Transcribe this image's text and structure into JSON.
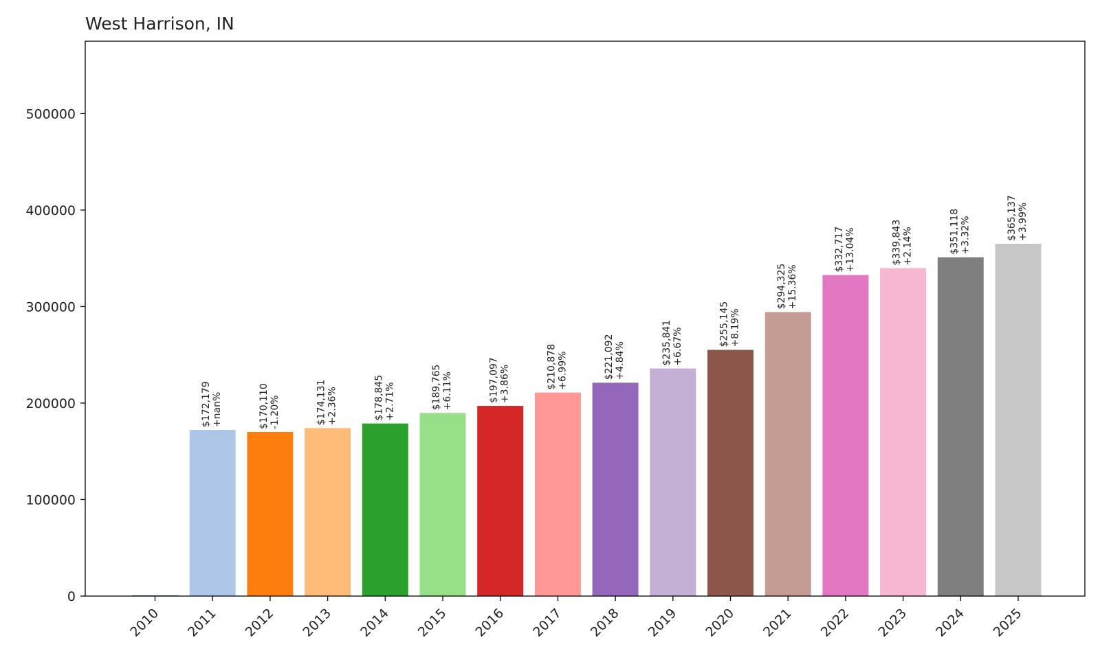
{
  "chart_data": {
    "type": "bar",
    "title": "West Harrison, IN",
    "xlabel": "",
    "ylabel": "",
    "ylim": [
      0,
      575000
    ],
    "y_ticks": [
      0,
      100000,
      200000,
      300000,
      400000,
      500000
    ],
    "y_tick_labels": [
      "0",
      "100000",
      "200000",
      "300000",
      "400000",
      "500000"
    ],
    "categories": [
      "2010",
      "2011",
      "2012",
      "2013",
      "2014",
      "2015",
      "2016",
      "2017",
      "2018",
      "2019",
      "2020",
      "2021",
      "2022",
      "2023",
      "2024",
      "2025"
    ],
    "values": [
      0,
      172179,
      170110,
      174131,
      178845,
      189765,
      197097,
      210878,
      221092,
      235841,
      255145,
      294325,
      332717,
      339843,
      351118,
      365137
    ],
    "value_labels": [
      "",
      "$172,179",
      "$170,110",
      "$174,131",
      "$178,845",
      "$189,765",
      "$197,097",
      "$210,878",
      "$221,092",
      "$235,841",
      "$255,145",
      "$294,325",
      "$332,717",
      "$339,843",
      "$351,118",
      "$365,137"
    ],
    "change_labels": [
      "",
      "+nan%",
      "-1.20%",
      "+2.36%",
      "+2.71%",
      "+6.11%",
      "+3.86%",
      "+6.99%",
      "+4.84%",
      "+6.67%",
      "+8.19%",
      "+15.36%",
      "+13.04%",
      "+2.14%",
      "+3.32%",
      "+3.99%"
    ],
    "colors": [
      "#1f77b4",
      "#aec7e8",
      "#ff7f0e",
      "#ffbb78",
      "#2ca02c",
      "#98df8a",
      "#d62728",
      "#ff9896",
      "#9467bd",
      "#c5b0d5",
      "#8c564b",
      "#c49c94",
      "#e377c2",
      "#f7b6d2",
      "#7f7f7f",
      "#c7c7c7"
    ],
    "grid": false,
    "legend": "none"
  }
}
